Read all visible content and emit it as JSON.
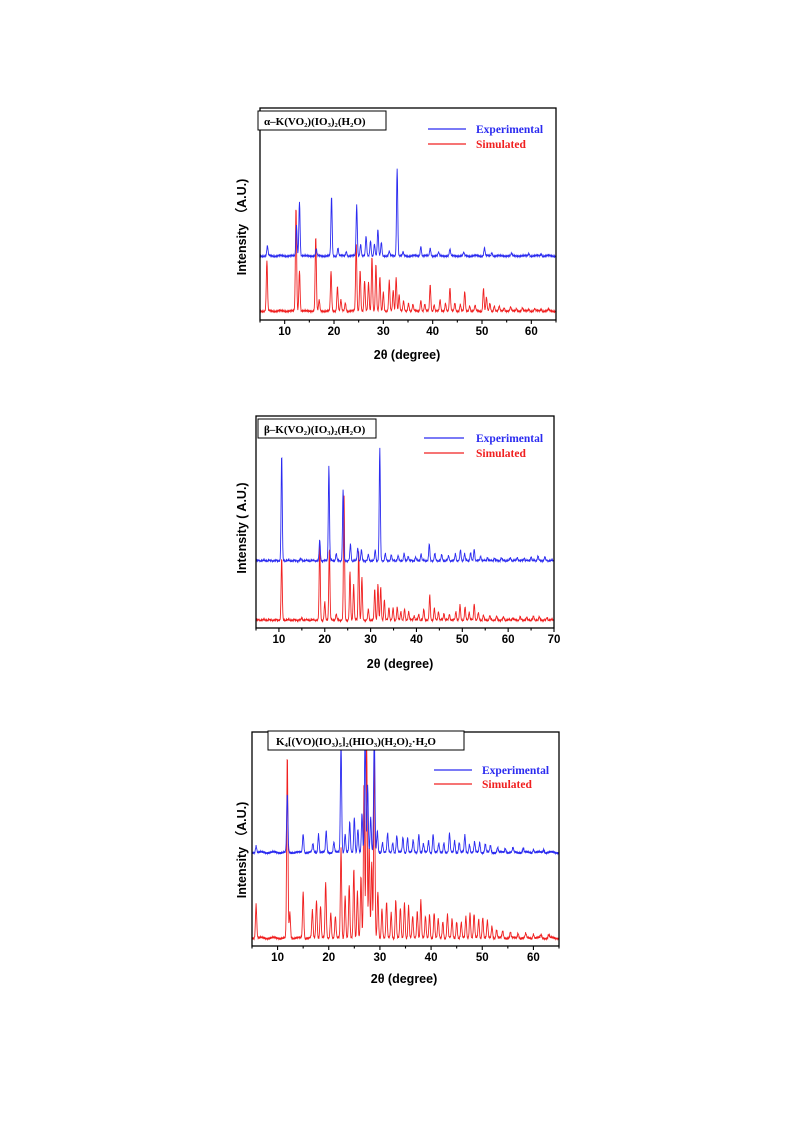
{
  "colors": {
    "experimental": "#2b2bf0",
    "simulated": "#f02020"
  },
  "chart_data": [
    {
      "type": "line",
      "title": "α–K(VO₂)(IO₃)₂(H₂O)",
      "xlabel": "2θ (degree)",
      "ylabel": "Intensity （A.U.)",
      "xlim": [
        5,
        65
      ],
      "xticks": [
        10,
        20,
        30,
        40,
        50,
        60
      ],
      "legend": {
        "position": "top-right",
        "entries": [
          "Experimental",
          "Simulated"
        ]
      },
      "series": [
        {
          "name": "Experimental",
          "offset": 1.0,
          "peaks": [
            [
              6.5,
              0.18
            ],
            [
              12.4,
              0.55
            ],
            [
              13.0,
              1.0
            ],
            [
              16.4,
              0.12
            ],
            [
              19.5,
              1.08
            ],
            [
              20.8,
              0.15
            ],
            [
              22.5,
              0.08
            ],
            [
              24.6,
              0.92
            ],
            [
              25.4,
              0.22
            ],
            [
              26.5,
              0.35
            ],
            [
              27.4,
              0.28
            ],
            [
              28.2,
              0.22
            ],
            [
              28.9,
              0.48
            ],
            [
              29.6,
              0.25
            ],
            [
              31.2,
              0.08
            ],
            [
              32.8,
              1.6
            ],
            [
              34.0,
              0.06
            ],
            [
              37.6,
              0.18
            ],
            [
              39.5,
              0.14
            ],
            [
              41.2,
              0.06
            ],
            [
              43.5,
              0.12
            ],
            [
              46.3,
              0.06
            ],
            [
              50.5,
              0.15
            ],
            [
              52.0,
              0.06
            ],
            [
              56.0,
              0.04
            ],
            [
              59.5,
              0.05
            ],
            [
              62.0,
              0.04
            ]
          ]
        },
        {
          "name": "Simulated",
          "offset": 0.0,
          "peaks": [
            [
              6.4,
              0.92
            ],
            [
              12.3,
              1.9
            ],
            [
              13.0,
              0.75
            ],
            [
              16.3,
              1.35
            ],
            [
              17.0,
              0.2
            ],
            [
              19.4,
              0.72
            ],
            [
              20.7,
              0.45
            ],
            [
              21.4,
              0.2
            ],
            [
              22.3,
              0.15
            ],
            [
              24.5,
              1.25
            ],
            [
              25.3,
              0.75
            ],
            [
              26.2,
              0.55
            ],
            [
              27.0,
              0.52
            ],
            [
              27.7,
              1.0
            ],
            [
              28.5,
              0.85
            ],
            [
              29.3,
              0.62
            ],
            [
              30.0,
              0.35
            ],
            [
              31.2,
              0.55
            ],
            [
              32.0,
              0.38
            ],
            [
              32.6,
              0.62
            ],
            [
              33.2,
              0.3
            ],
            [
              34.1,
              0.18
            ],
            [
              35.1,
              0.15
            ],
            [
              36.0,
              0.12
            ],
            [
              37.6,
              0.2
            ],
            [
              38.4,
              0.12
            ],
            [
              39.5,
              0.48
            ],
            [
              40.3,
              0.12
            ],
            [
              41.5,
              0.2
            ],
            [
              42.6,
              0.15
            ],
            [
              43.5,
              0.42
            ],
            [
              44.5,
              0.15
            ],
            [
              45.6,
              0.12
            ],
            [
              46.5,
              0.35
            ],
            [
              47.5,
              0.1
            ],
            [
              48.6,
              0.1
            ],
            [
              50.3,
              0.42
            ],
            [
              50.9,
              0.25
            ],
            [
              51.6,
              0.14
            ],
            [
              52.5,
              0.1
            ],
            [
              53.5,
              0.08
            ],
            [
              54.5,
              0.06
            ],
            [
              55.8,
              0.07
            ],
            [
              57.0,
              0.05
            ],
            [
              58.2,
              0.05
            ],
            [
              59.5,
              0.04
            ],
            [
              60.7,
              0.04
            ],
            [
              62.0,
              0.04
            ],
            [
              63.5,
              0.03
            ]
          ]
        }
      ]
    },
    {
      "type": "line",
      "title": "β–K(VO₂)(IO₃)₂(H₂O)",
      "xlabel": "2θ (degree)",
      "ylabel": "Intensity ( A.U.)",
      "xlim": [
        5,
        70
      ],
      "xticks": [
        10,
        20,
        30,
        40,
        50,
        60,
        70
      ],
      "legend": {
        "position": "top-right",
        "entries": [
          "Experimental",
          "Simulated"
        ]
      },
      "series": [
        {
          "name": "Experimental",
          "offset": 1.0,
          "peaks": [
            [
              10.6,
              1.8
            ],
            [
              14.8,
              0.03
            ],
            [
              18.9,
              0.35
            ],
            [
              20.9,
              1.6
            ],
            [
              22.5,
              0.12
            ],
            [
              24.0,
              1.2
            ],
            [
              25.6,
              0.28
            ],
            [
              27.2,
              0.22
            ],
            [
              28.0,
              0.18
            ],
            [
              29.5,
              0.1
            ],
            [
              31.0,
              0.18
            ],
            [
              32.0,
              1.9
            ],
            [
              33.2,
              0.12
            ],
            [
              34.5,
              0.1
            ],
            [
              36.0,
              0.08
            ],
            [
              37.3,
              0.12
            ],
            [
              38.2,
              0.08
            ],
            [
              39.8,
              0.06
            ],
            [
              41.0,
              0.12
            ],
            [
              42.8,
              0.28
            ],
            [
              44.0,
              0.12
            ],
            [
              45.5,
              0.1
            ],
            [
              47.0,
              0.08
            ],
            [
              48.5,
              0.12
            ],
            [
              49.6,
              0.18
            ],
            [
              50.5,
              0.12
            ],
            [
              51.8,
              0.14
            ],
            [
              52.6,
              0.2
            ],
            [
              54.0,
              0.08
            ],
            [
              55.5,
              0.06
            ],
            [
              57.0,
              0.05
            ],
            [
              58.5,
              0.05
            ],
            [
              60.5,
              0.05
            ],
            [
              62.0,
              0.06
            ],
            [
              63.5,
              0.05
            ],
            [
              65.0,
              0.07
            ],
            [
              66.5,
              0.08
            ],
            [
              68.0,
              0.06
            ]
          ]
        },
        {
          "name": "Simulated",
          "offset": 0.0,
          "peaks": [
            [
              10.6,
              1.05
            ],
            [
              15.0,
              0.03
            ],
            [
              18.9,
              1.28
            ],
            [
              20.0,
              0.3
            ],
            [
              21.0,
              1.22
            ],
            [
              22.5,
              0.1
            ],
            [
              24.2,
              2.1
            ],
            [
              25.5,
              0.82
            ],
            [
              26.3,
              0.6
            ],
            [
              27.4,
              1.18
            ],
            [
              28.1,
              0.72
            ],
            [
              29.5,
              0.18
            ],
            [
              30.9,
              0.52
            ],
            [
              31.6,
              0.62
            ],
            [
              32.2,
              0.55
            ],
            [
              33.0,
              0.35
            ],
            [
              34.0,
              0.22
            ],
            [
              34.9,
              0.2
            ],
            [
              35.8,
              0.22
            ],
            [
              36.6,
              0.15
            ],
            [
              37.4,
              0.18
            ],
            [
              38.3,
              0.15
            ],
            [
              39.5,
              0.08
            ],
            [
              40.5,
              0.1
            ],
            [
              41.6,
              0.18
            ],
            [
              42.9,
              0.42
            ],
            [
              43.9,
              0.2
            ],
            [
              44.8,
              0.15
            ],
            [
              46.0,
              0.12
            ],
            [
              47.2,
              0.1
            ],
            [
              48.6,
              0.15
            ],
            [
              49.5,
              0.25
            ],
            [
              50.6,
              0.22
            ],
            [
              51.5,
              0.14
            ],
            [
              52.6,
              0.28
            ],
            [
              53.5,
              0.12
            ],
            [
              54.6,
              0.08
            ],
            [
              56.0,
              0.07
            ],
            [
              57.5,
              0.06
            ],
            [
              59.0,
              0.05
            ],
            [
              61.0,
              0.04
            ],
            [
              62.6,
              0.05
            ],
            [
              64.0,
              0.04
            ],
            [
              65.5,
              0.06
            ],
            [
              66.8,
              0.05
            ],
            [
              68.5,
              0.04
            ]
          ]
        }
      ]
    },
    {
      "type": "line",
      "title": "K₄[(VO)(IO₃)₅]₂(HIO₃)(H₂O)₂·H₂O",
      "xlabel": "2θ (degree)",
      "ylabel": "Intensity （A.U.)",
      "xlim": [
        5,
        65
      ],
      "xticks": [
        10,
        20,
        30,
        40,
        50,
        60
      ],
      "legend": {
        "position": "top-right",
        "entries": [
          "Experimental",
          "Simulated"
        ]
      },
      "series": [
        {
          "name": "Experimental",
          "offset": 1.0,
          "peaks": [
            [
              5.8,
              0.08
            ],
            [
              11.9,
              0.68
            ],
            [
              15.0,
              0.22
            ],
            [
              16.9,
              0.1
            ],
            [
              18.0,
              0.22
            ],
            [
              19.5,
              0.25
            ],
            [
              21.0,
              0.12
            ],
            [
              22.4,
              1.3
            ],
            [
              23.2,
              0.22
            ],
            [
              24.1,
              0.35
            ],
            [
              25.0,
              0.42
            ],
            [
              25.7,
              0.28
            ],
            [
              26.5,
              0.45
            ],
            [
              27.1,
              1.4
            ],
            [
              27.6,
              0.8
            ],
            [
              28.2,
              0.42
            ],
            [
              28.9,
              1.45
            ],
            [
              29.5,
              0.25
            ],
            [
              30.5,
              0.12
            ],
            [
              31.5,
              0.22
            ],
            [
              32.5,
              0.12
            ],
            [
              33.3,
              0.2
            ],
            [
              34.5,
              0.18
            ],
            [
              35.4,
              0.18
            ],
            [
              36.5,
              0.14
            ],
            [
              37.6,
              0.22
            ],
            [
              38.5,
              0.1
            ],
            [
              39.5,
              0.14
            ],
            [
              40.4,
              0.22
            ],
            [
              41.5,
              0.1
            ],
            [
              42.5,
              0.12
            ],
            [
              43.6,
              0.22
            ],
            [
              44.6,
              0.14
            ],
            [
              45.5,
              0.12
            ],
            [
              46.6,
              0.2
            ],
            [
              47.5,
              0.1
            ],
            [
              48.5,
              0.12
            ],
            [
              49.5,
              0.12
            ],
            [
              50.6,
              0.1
            ],
            [
              51.6,
              0.08
            ],
            [
              53.0,
              0.06
            ],
            [
              54.5,
              0.05
            ],
            [
              56.0,
              0.05
            ],
            [
              58.0,
              0.05
            ],
            [
              60.0,
              0.04
            ],
            [
              62.0,
              0.04
            ]
          ]
        },
        {
          "name": "Simulated",
          "offset": 0.0,
          "peaks": [
            [
              5.8,
              0.4
            ],
            [
              11.9,
              2.15
            ],
            [
              12.4,
              0.3
            ],
            [
              15.0,
              0.55
            ],
            [
              16.8,
              0.32
            ],
            [
              17.6,
              0.45
            ],
            [
              18.4,
              0.38
            ],
            [
              19.4,
              0.65
            ],
            [
              20.4,
              0.3
            ],
            [
              21.3,
              0.25
            ],
            [
              22.4,
              1.05
            ],
            [
              23.2,
              0.5
            ],
            [
              24.0,
              0.62
            ],
            [
              24.9,
              0.82
            ],
            [
              25.6,
              0.55
            ],
            [
              26.3,
              0.72
            ],
            [
              26.9,
              1.85
            ],
            [
              27.4,
              2.35
            ],
            [
              27.9,
              1.1
            ],
            [
              28.4,
              0.9
            ],
            [
              28.9,
              2.25
            ],
            [
              29.6,
              0.55
            ],
            [
              30.4,
              0.35
            ],
            [
              31.3,
              0.42
            ],
            [
              32.2,
              0.3
            ],
            [
              33.1,
              0.45
            ],
            [
              34.0,
              0.35
            ],
            [
              34.8,
              0.42
            ],
            [
              35.6,
              0.38
            ],
            [
              36.4,
              0.25
            ],
            [
              37.3,
              0.32
            ],
            [
              38.0,
              0.45
            ],
            [
              38.9,
              0.25
            ],
            [
              39.7,
              0.28
            ],
            [
              40.6,
              0.3
            ],
            [
              41.4,
              0.22
            ],
            [
              42.3,
              0.2
            ],
            [
              43.2,
              0.28
            ],
            [
              44.1,
              0.22
            ],
            [
              45.0,
              0.2
            ],
            [
              45.9,
              0.18
            ],
            [
              46.8,
              0.25
            ],
            [
              47.6,
              0.3
            ],
            [
              48.4,
              0.28
            ],
            [
              49.3,
              0.22
            ],
            [
              50.1,
              0.25
            ],
            [
              51.0,
              0.2
            ],
            [
              51.9,
              0.14
            ],
            [
              52.8,
              0.1
            ],
            [
              54.0,
              0.08
            ],
            [
              55.5,
              0.07
            ],
            [
              57.0,
              0.06
            ],
            [
              58.5,
              0.05
            ],
            [
              60.0,
              0.05
            ],
            [
              61.5,
              0.04
            ],
            [
              63.0,
              0.04
            ]
          ]
        }
      ]
    }
  ]
}
